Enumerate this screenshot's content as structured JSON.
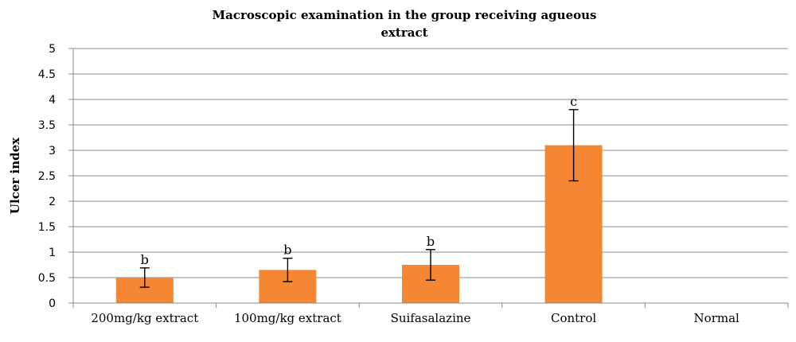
{
  "chart_data": {
    "type": "bar",
    "title_lines": [
      "Macroscopic examination in the group receiving agueous",
      "extract"
    ],
    "xlabel": "",
    "ylabel": "Ulcer index",
    "ylim": [
      0,
      5
    ],
    "y_ticks": [
      "0",
      "0.5",
      "1",
      "1.5",
      "2",
      "2.5",
      "3",
      "3.5",
      "4",
      "4.5",
      "5"
    ],
    "grid": true,
    "categories": [
      "200mg/kg extract",
      "100mg/kg extract",
      "Suifasalazine",
      "Control",
      "Normal"
    ],
    "values": [
      0.5,
      0.65,
      0.75,
      3.1,
      0
    ],
    "error": [
      0.19,
      0.23,
      0.3,
      0.7,
      0
    ],
    "labels": [
      "b",
      "b",
      "b",
      "c",
      ""
    ],
    "colors": {
      "bar": "#F58634",
      "grid": "#888888",
      "axis": "#888888",
      "errorbar": "#000000"
    }
  }
}
